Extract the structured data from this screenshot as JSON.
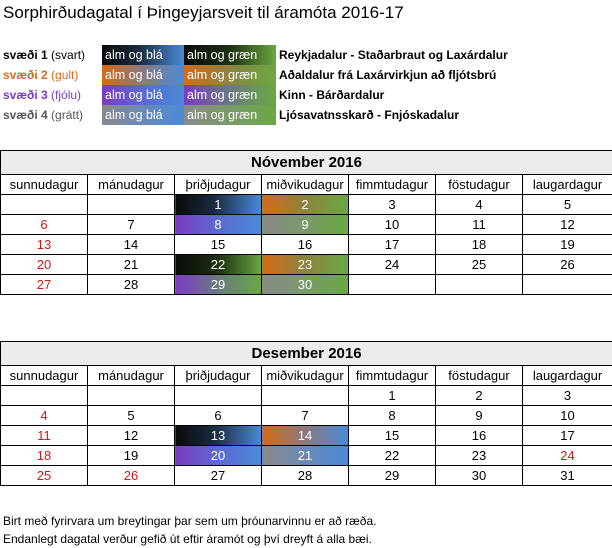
{
  "title": "Sorphirðudagatal í Þingeyjarsveit til áramóta 2016-17",
  "legend": [
    {
      "zone": "svæði 1",
      "sub": "(svart)",
      "color_class": "c-black",
      "bin1": "alm og blá",
      "bin2": "alm og græn",
      "area": "Reykjadalur - Staðarbraut og Laxárdalur",
      "g1": "g-black1",
      "g2": "g-black2"
    },
    {
      "zone": "svæði 2",
      "sub": "(gult)",
      "color_class": "c-orange",
      "bin1": "alm og blá",
      "bin2": "alm og græn",
      "area": "Aðaldalur frá Laxárvirkjun að fljótsbrú",
      "g1": "g-orange1",
      "g2": "g-orange2"
    },
    {
      "zone": "svæði 3",
      "sub": "(fjólu)",
      "color_class": "c-purple",
      "bin1": "alm og blá",
      "bin2": "alm og græn",
      "area": "Kinn - Bárðardalur",
      "g1": "g-purple1",
      "g2": "g-purple2"
    },
    {
      "zone": "svæði 4",
      "sub": "(grátt)",
      "color_class": "c-gray",
      "bin1": "alm og blá",
      "bin2": "alm og græn",
      "area": "Ljósavatnsskarð - Fnjóskadalur",
      "g1": "g-gray1",
      "g2": "g-gray2"
    }
  ],
  "weekdays": [
    "sunnudagur",
    "mánudagur",
    "þriðjudagur",
    "miðvikudagur",
    "fimmtudagur",
    "föstudagur",
    "laugardagur"
  ],
  "months": [
    {
      "name": "Nóvember 2016",
      "weeks": [
        [
          {
            "d": ""
          },
          {
            "d": ""
          },
          {
            "d": "1",
            "g": "g-black1"
          },
          {
            "d": "2",
            "g": "g-orange2"
          },
          {
            "d": "3"
          },
          {
            "d": "4"
          },
          {
            "d": "5"
          }
        ],
        [
          {
            "d": "6",
            "red": true
          },
          {
            "d": "7"
          },
          {
            "d": "8",
            "g": "g-purple1"
          },
          {
            "d": "9",
            "g": "g-gray2"
          },
          {
            "d": "10"
          },
          {
            "d": "11"
          },
          {
            "d": "12"
          }
        ],
        [
          {
            "d": "13",
            "red": true
          },
          {
            "d": "14"
          },
          {
            "d": "15"
          },
          {
            "d": "16"
          },
          {
            "d": "17"
          },
          {
            "d": "18"
          },
          {
            "d": "19"
          }
        ],
        [
          {
            "d": "20",
            "red": true
          },
          {
            "d": "21"
          },
          {
            "d": "22",
            "g": "g-black2"
          },
          {
            "d": "23",
            "g": "g-orange2"
          },
          {
            "d": "24"
          },
          {
            "d": "25"
          },
          {
            "d": "26"
          }
        ],
        [
          {
            "d": "27",
            "red": true
          },
          {
            "d": "28"
          },
          {
            "d": "29",
            "g": "g-purple2"
          },
          {
            "d": "30",
            "g": "g-gray2"
          },
          {
            "d": ""
          },
          {
            "d": ""
          },
          {
            "d": ""
          }
        ]
      ]
    },
    {
      "name": "Desember 2016",
      "weeks": [
        [
          {
            "d": ""
          },
          {
            "d": ""
          },
          {
            "d": ""
          },
          {
            "d": ""
          },
          {
            "d": "1"
          },
          {
            "d": "2"
          },
          {
            "d": "3"
          }
        ],
        [
          {
            "d": "4",
            "red": true
          },
          {
            "d": "5"
          },
          {
            "d": "6"
          },
          {
            "d": "7"
          },
          {
            "d": "8"
          },
          {
            "d": "9"
          },
          {
            "d": "10"
          }
        ],
        [
          {
            "d": "11",
            "red": true
          },
          {
            "d": "12"
          },
          {
            "d": "13",
            "g": "g-black1"
          },
          {
            "d": "14",
            "g": "g-orange1"
          },
          {
            "d": "15"
          },
          {
            "d": "16"
          },
          {
            "d": "17"
          }
        ],
        [
          {
            "d": "18",
            "red": true
          },
          {
            "d": "19"
          },
          {
            "d": "20",
            "g": "g-purple1"
          },
          {
            "d": "21",
            "g": "g-gray1"
          },
          {
            "d": "22"
          },
          {
            "d": "23"
          },
          {
            "d": "24",
            "red": true
          }
        ],
        [
          {
            "d": "25",
            "red": true
          },
          {
            "d": "26",
            "red": true
          },
          {
            "d": "27"
          },
          {
            "d": "28"
          },
          {
            "d": "29"
          },
          {
            "d": "30"
          },
          {
            "d": "31"
          }
        ]
      ]
    }
  ],
  "notes": [
    "Birt með fyrirvara um breytingar þar sem um þróunarvinnu er að ræða.",
    "Endanlegt dagatal verður gefið út eftir áramót og því dreyft á alla bæi."
  ]
}
